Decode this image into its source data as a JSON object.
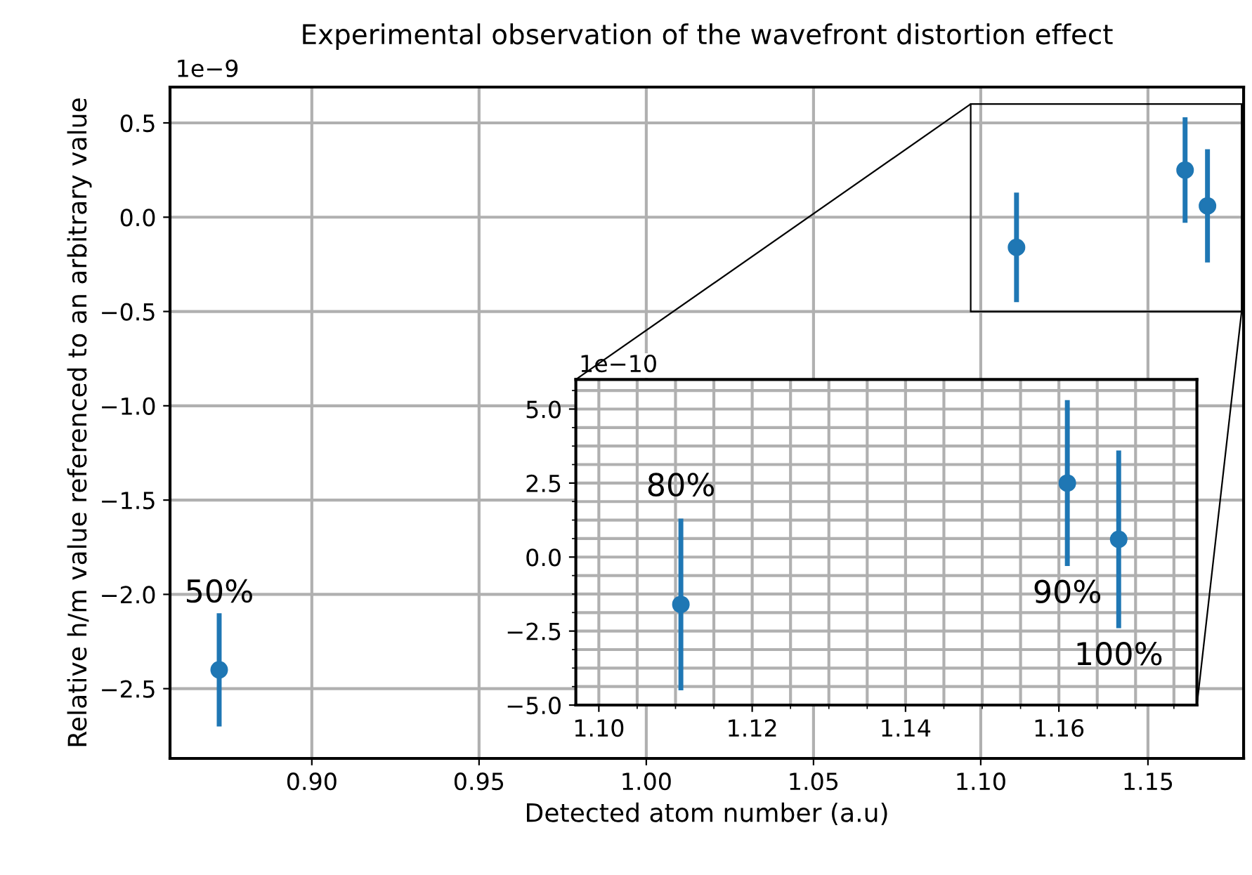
{
  "chart_data": [
    {
      "type": "scatter",
      "title": "Experimental observation of the wavefront distortion effect",
      "xlabel": "Detected atom number (a.u)",
      "ylabel": "Relative h/m value referenced to an arbitrary value",
      "x": [
        0.8723,
        1.1107,
        1.1611,
        1.1678
      ],
      "series": [
        {
          "color": "#1f77b4",
          "values": [
            -2.4,
            -0.16,
            0.25,
            0.06
          ],
          "errors": [
            0.3,
            0.29,
            0.28,
            0.3
          ]
        }
      ],
      "marker": "circle",
      "grid": true,
      "xlim": [
        0.8576,
        1.1786
      ],
      "ylim": [
        -2.87,
        0.69
      ],
      "xticks": [
        {
          "value": 0.9,
          "label": "0.90"
        },
        {
          "value": 0.95,
          "label": "0.95"
        },
        {
          "value": 1.0,
          "label": "1.00"
        },
        {
          "value": 1.05,
          "label": "1.05"
        },
        {
          "value": 1.1,
          "label": "1.10"
        },
        {
          "value": 1.15,
          "label": "1.15"
        }
      ],
      "yticks": [
        0.5,
        {
          "value": 0,
          "label": "0.0"
        },
        {
          "value": -0.5,
          "label": "−0.5"
        },
        {
          "value": -1.0,
          "label": "−1.0"
        },
        {
          "value": -1.5,
          "label": "−1.5"
        },
        {
          "value": -2.0,
          "label": "−2.0"
        },
        {
          "value": -2.5,
          "label": "−2.5"
        }
      ],
      "annotations": [
        "1e−9",
        "50%"
      ]
    },
    {
      "type": "scatter",
      "x": [
        1.1107,
        1.1611,
        1.1678
      ],
      "series": [
        {
          "color": "#1f77b4",
          "values": [
            -1.6,
            2.5,
            0.6
          ],
          "errors": [
            2.9,
            2.8,
            3.0
          ]
        }
      ],
      "marker": "circle",
      "grid": true,
      "xlim": [
        1.097,
        1.178
      ],
      "ylim": [
        -5,
        6
      ],
      "xticks": [
        {
          "value": 1.1,
          "label": "1.10"
        },
        {
          "value": 1.12,
          "label": "1.12"
        },
        {
          "value": 1.14,
          "label": "1.14"
        },
        {
          "value": 1.16,
          "label": "1.16"
        },
        {
          "value": 1.105,
          "label": null
        },
        {
          "value": 1.11,
          "label": null
        },
        {
          "value": 1.115,
          "label": null
        },
        {
          "value": 1.125,
          "label": null
        },
        {
          "value": 1.13,
          "label": null
        },
        {
          "value": 1.135,
          "label": null
        },
        {
          "value": 1.145,
          "label": null
        },
        {
          "value": 1.15,
          "label": null
        },
        {
          "value": 1.155,
          "label": null
        },
        {
          "value": 1.165,
          "label": null
        },
        {
          "value": 1.17,
          "label": null
        },
        {
          "value": 1.175,
          "label": null
        }
      ],
      "yticks": [
        {
          "value": 5,
          "label": "5.0"
        },
        2.5,
        {
          "value": 0,
          "label": "0.0"
        },
        {
          "value": -2.5,
          "label": "−2.5"
        },
        {
          "value": -5,
          "label": "−5.0"
        },
        {
          "value": 5.625,
          "label": null
        },
        {
          "value": 4.375,
          "label": null
        },
        {
          "value": 3.75,
          "label": null
        },
        {
          "value": 3.125,
          "label": null
        },
        {
          "value": 1.875,
          "label": null
        },
        {
          "value": 1.25,
          "label": null
        },
        {
          "value": 0.625,
          "label": null
        },
        {
          "value": -0.625,
          "label": null
        },
        {
          "value": -1.25,
          "label": null
        },
        {
          "value": -1.875,
          "label": null
        },
        {
          "value": -3.125,
          "label": null
        },
        {
          "value": -3.75,
          "label": null
        },
        {
          "value": -4.375,
          "label": null
        }
      ],
      "annotations": [
        "1e−10",
        "80%",
        "90%",
        "100%"
      ]
    }
  ]
}
